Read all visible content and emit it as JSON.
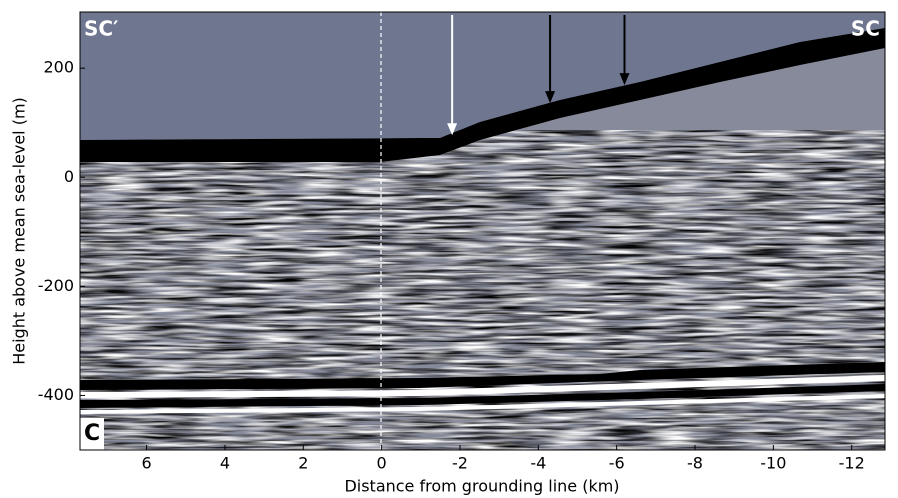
{
  "chart_data": {
    "type": "radargram",
    "xlabel": "Distance from grounding line (km)",
    "ylabel": "Height above mean sea-level (m)",
    "xlim": [
      7.7,
      -12.85
    ],
    "xticks": [
      6,
      4,
      2,
      0,
      -2,
      -4,
      -6,
      -8,
      -10,
      -12
    ],
    "ylim": [
      -500,
      303
    ],
    "yticks": [
      200,
      0,
      -200,
      -400
    ],
    "annotations": [
      "SC′",
      "SC",
      "C"
    ],
    "arrows": [
      {
        "x": -1.8,
        "y": 77,
        "color": "#ffffff"
      },
      {
        "x": -4.3,
        "y": 136,
        "color": "#000000"
      },
      {
        "x": -6.2,
        "y": 169,
        "color": "#000000"
      }
    ]
  }
}
